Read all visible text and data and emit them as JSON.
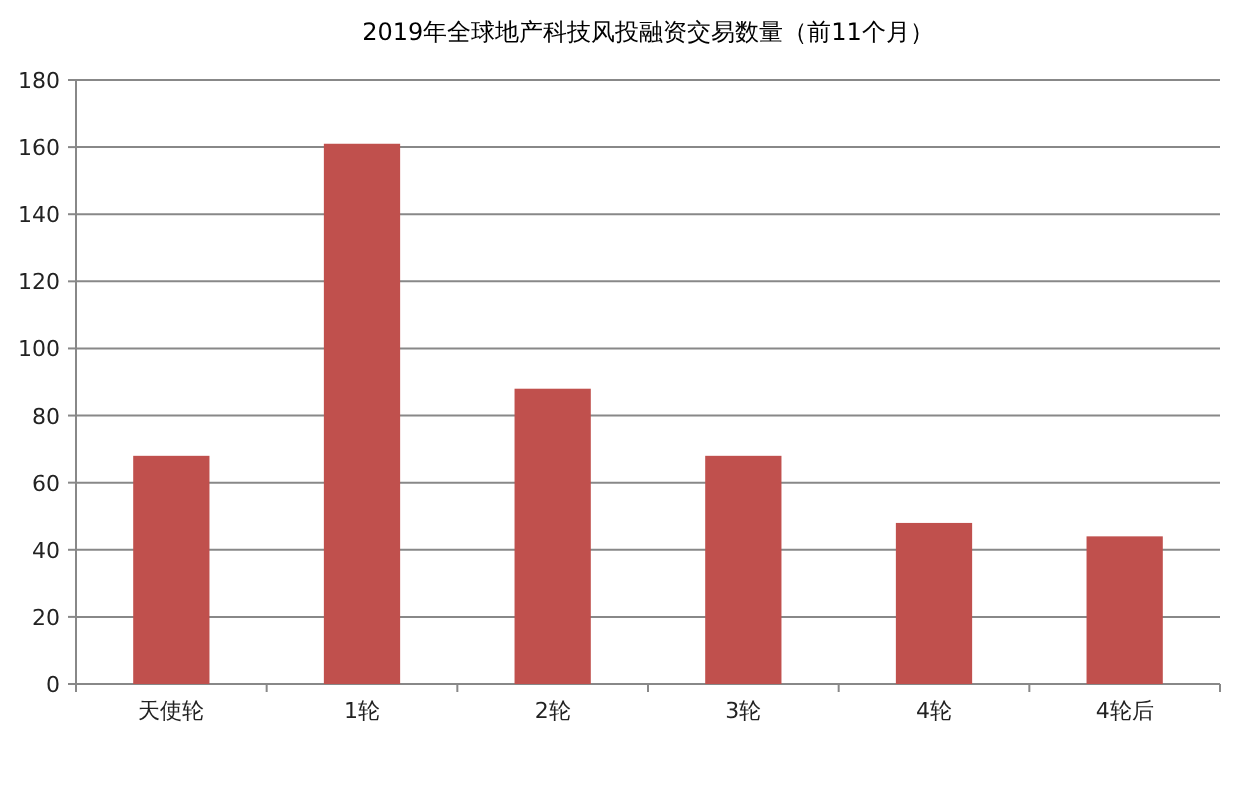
{
  "chart_data": {
    "type": "bar",
    "title": "2019年全球地产科技风投融资交易数量（前11个月）",
    "categories": [
      "天使轮",
      "1轮",
      "2轮",
      "3轮",
      "4轮",
      "4轮后"
    ],
    "values": [
      68,
      161,
      88,
      68,
      48,
      44
    ],
    "color": "#c0504d",
    "ylim": [
      0,
      180
    ],
    "yticks": [
      0,
      20,
      40,
      60,
      80,
      100,
      120,
      140,
      160,
      180
    ],
    "grid": "y"
  }
}
